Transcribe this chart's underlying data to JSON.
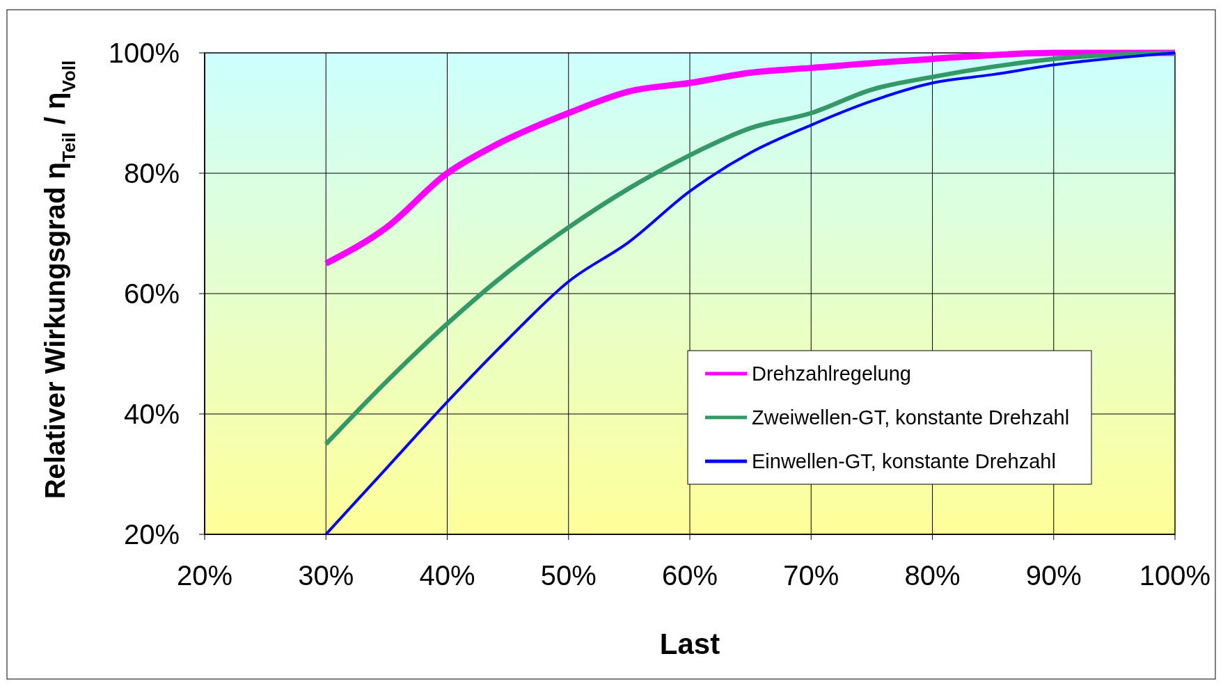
{
  "chart_data": {
    "type": "line",
    "xlabel": "Last",
    "ylabel": "Relativer Wirkungsgrad η$_{Teil}$ / η$_{Voll}$",
    "xlim": [
      20,
      100
    ],
    "xticks": [
      {
        "value": 20,
        "label": "20%"
      },
      {
        "value": 30,
        "label": "30%"
      },
      {
        "value": 40,
        "label": "40%"
      },
      {
        "value": 50,
        "label": "50%"
      },
      {
        "value": 60,
        "label": "60%"
      },
      {
        "value": 70,
        "label": "70%"
      },
      {
        "value": 80,
        "label": "80%"
      },
      {
        "value": 90,
        "label": "90%"
      },
      {
        "value": 100,
        "label": "100%"
      }
    ],
    "ylim": [
      20,
      100
    ],
    "yticks": [
      {
        "value": 20,
        "label": "20%"
      },
      {
        "value": 40,
        "label": "40%"
      },
      {
        "value": 60,
        "label": "60%"
      },
      {
        "value": 80,
        "label": "80%"
      },
      {
        "value": 100,
        "label": "100%"
      }
    ],
    "grid": true,
    "legend": "bottom right",
    "marker": "none",
    "line_style": "solid",
    "series": [
      {
        "name": "Drehzahlregelung",
        "color": "#ff00ff",
        "x": [
          30,
          35,
          40,
          44,
          50,
          55,
          60,
          65,
          70,
          80,
          90,
          100
        ],
        "values": [
          65,
          71,
          80,
          84.7,
          90,
          93.6,
          95,
          96.7,
          97.5,
          99,
          100,
          100
        ]
      },
      {
        "name": "Zweiwellen-GT, konstante Drehzahl",
        "color": "#339966",
        "x": [
          30,
          35,
          40,
          45,
          50,
          55,
          60,
          65,
          70,
          75,
          80,
          85,
          90,
          100
        ],
        "values": [
          35,
          45.4,
          55,
          63.6,
          71,
          77.5,
          83,
          87.5,
          90,
          93.9,
          96,
          97.7,
          99,
          100
        ]
      },
      {
        "name": "Einwellen-GT, konstante Drehzahl",
        "color": "#0000ff",
        "x": [
          30,
          35,
          40,
          45,
          50,
          55,
          60,
          65,
          70,
          75,
          80,
          85,
          90,
          100
        ],
        "values": [
          20,
          31,
          42,
          52.4,
          62,
          68.6,
          77,
          83.4,
          88,
          92,
          95,
          96.4,
          98,
          100
        ]
      }
    ]
  }
}
